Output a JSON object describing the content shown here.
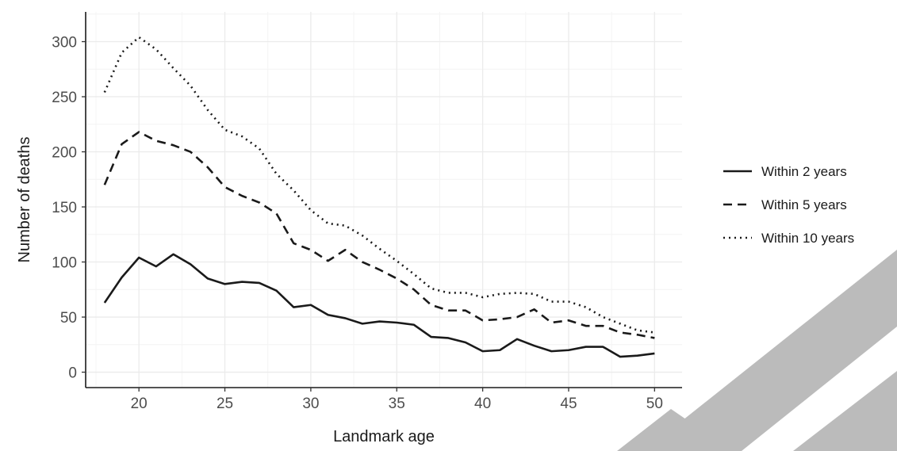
{
  "chart_data": {
    "type": "line",
    "title": "",
    "xlabel": "Landmark age",
    "ylabel": "Number of deaths",
    "xlim": [
      16.9,
      51.6
    ],
    "ylim": [
      -14,
      327
    ],
    "xticks": [
      20,
      25,
      30,
      35,
      40,
      45,
      50
    ],
    "yticks": [
      0,
      50,
      100,
      150,
      200,
      250,
      300
    ],
    "grid": true,
    "legend_position": "right",
    "x": [
      18,
      19,
      20,
      21,
      22,
      23,
      24,
      25,
      26,
      27,
      28,
      29,
      30,
      31,
      32,
      33,
      34,
      35,
      36,
      37,
      38,
      39,
      40,
      41,
      42,
      43,
      44,
      45,
      46,
      47,
      48,
      49,
      50
    ],
    "series": [
      {
        "name": "Within 2 years",
        "dash": "solid",
        "values": [
          63,
          86,
          104,
          96,
          107,
          98,
          85,
          80,
          82,
          81,
          74,
          59,
          61,
          52,
          49,
          44,
          46,
          45,
          43,
          32,
          31,
          27,
          19,
          20,
          30,
          24,
          19,
          20,
          23,
          23,
          14,
          15,
          17
        ]
      },
      {
        "name": "Within 5 years",
        "dash": "dashed",
        "values": [
          170,
          207,
          218,
          210,
          206,
          200,
          186,
          168,
          160,
          154,
          144,
          117,
          111,
          101,
          111,
          100,
          93,
          85,
          75,
          61,
          56,
          56,
          47,
          48,
          50,
          57,
          45,
          47,
          42,
          42,
          36,
          34,
          31
        ]
      },
      {
        "name": "Within 10 years",
        "dash": "dotted",
        "values": [
          254,
          290,
          304,
          293,
          276,
          260,
          238,
          220,
          214,
          203,
          180,
          165,
          147,
          135,
          133,
          124,
          112,
          101,
          89,
          76,
          72,
          72,
          68,
          71,
          72,
          71,
          64,
          64,
          59,
          50,
          44,
          38,
          36
        ]
      }
    ]
  },
  "colors": {
    "line": "#1a1a1a",
    "grid_major": "#ebebeb",
    "grid_minor": "#f4f4f4",
    "watermark": "#bbbbbb"
  }
}
